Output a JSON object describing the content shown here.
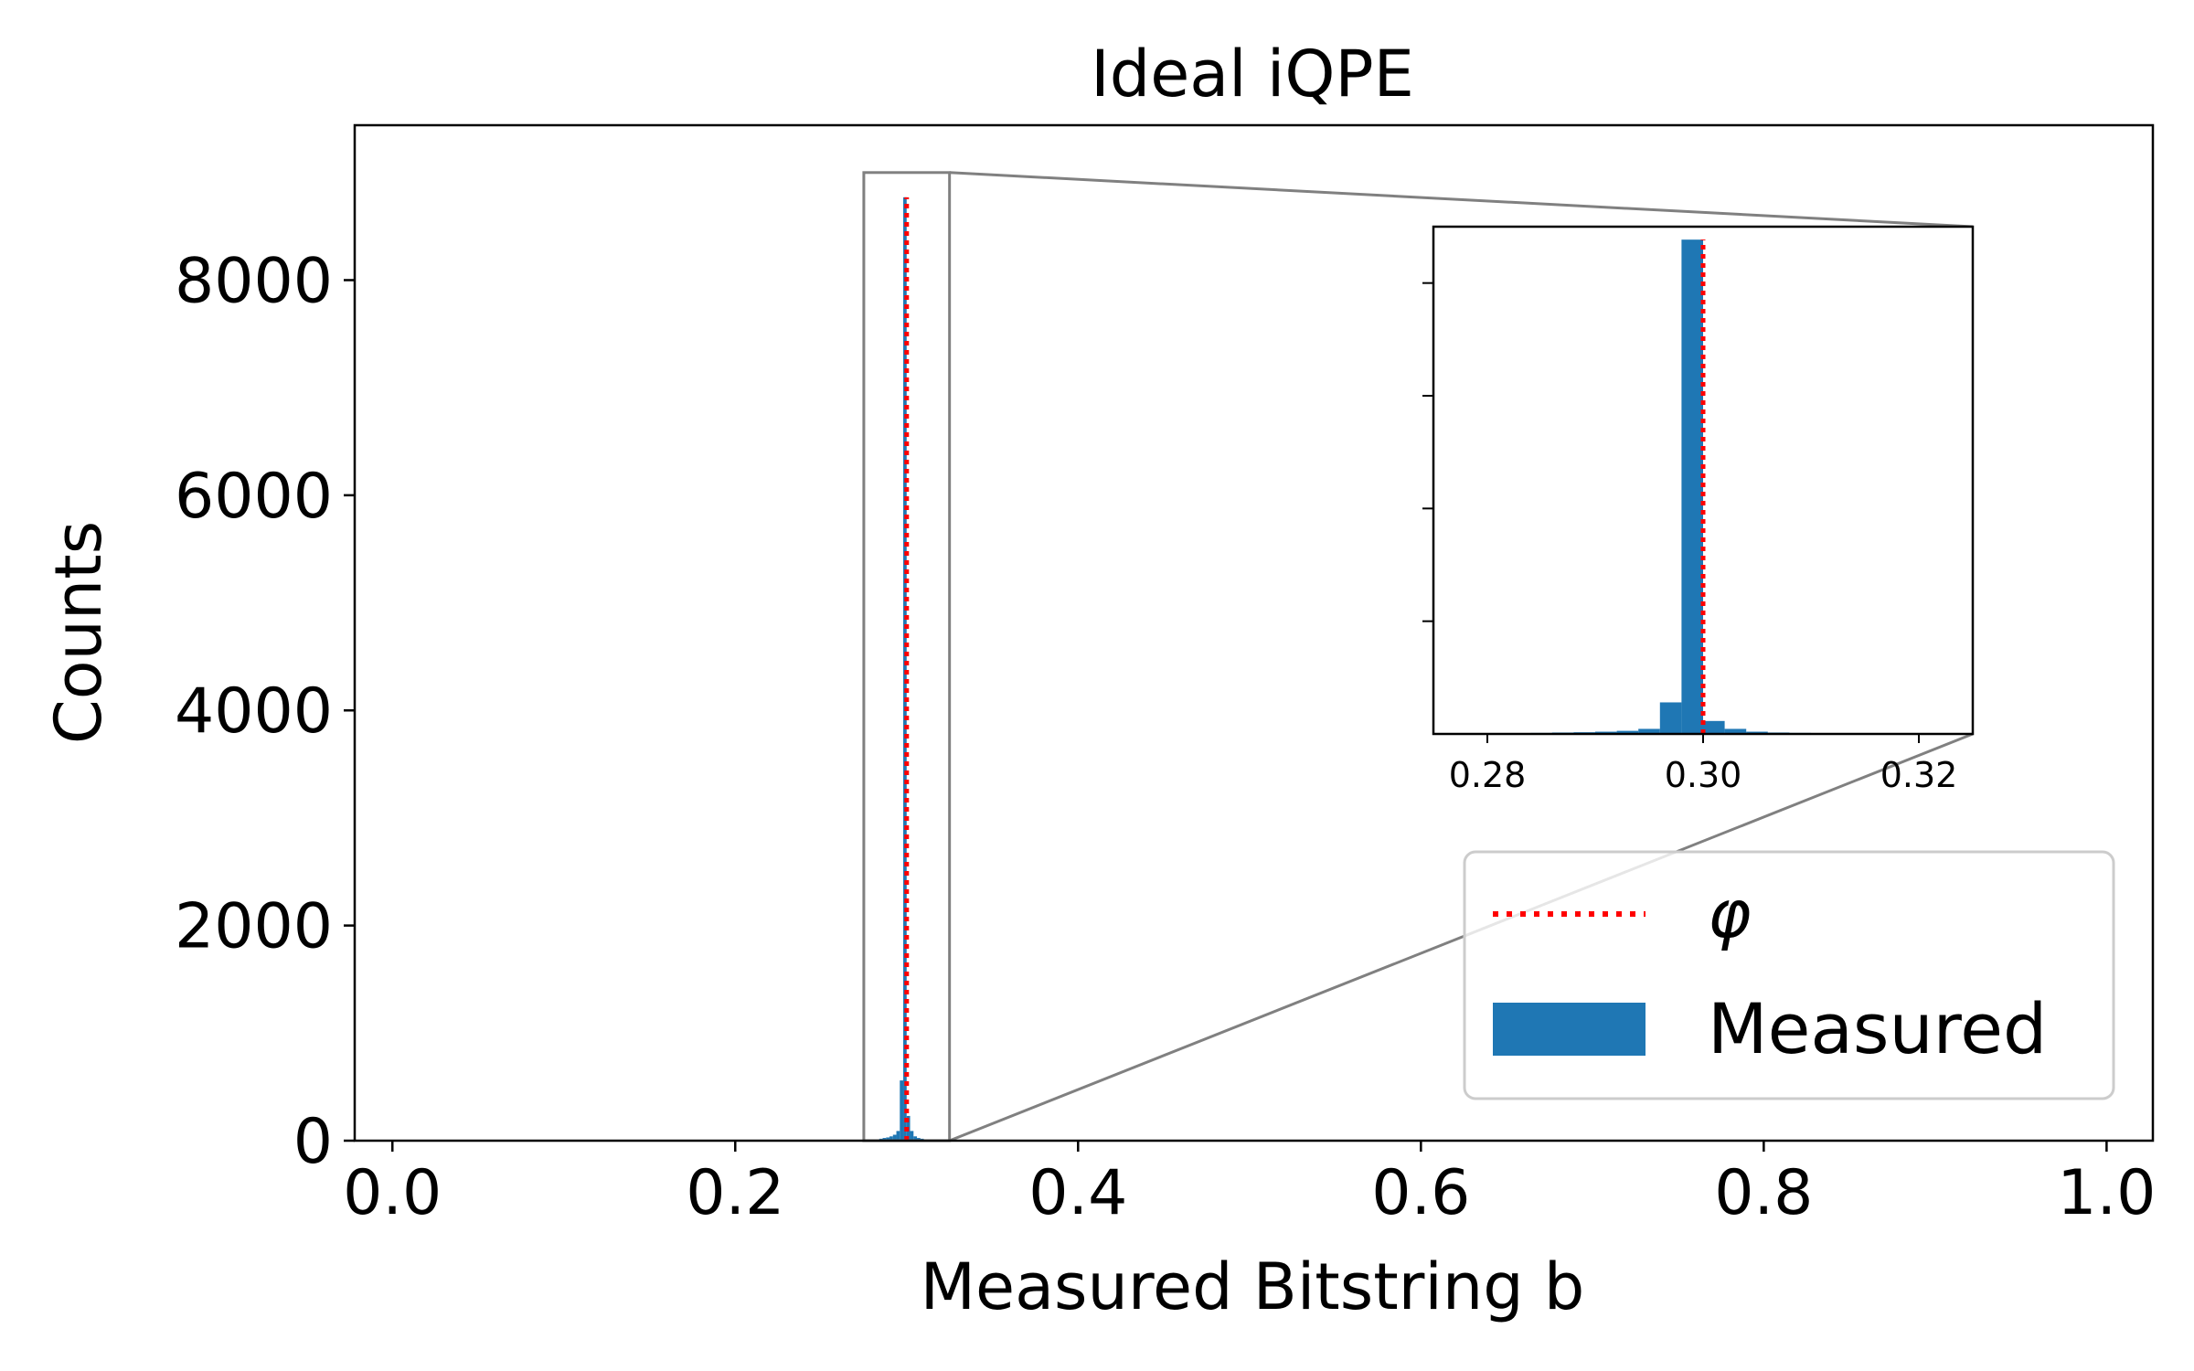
{
  "chart_data": {
    "type": "bar",
    "title": "Ideal iQPE",
    "xlabel": "Measured Bitstring b",
    "ylabel": "Counts",
    "xlim": [
      -0.022,
      1.027
    ],
    "ylim": [
      0,
      9440
    ],
    "x_ticks": [
      0.0,
      0.2,
      0.4,
      0.6,
      0.8,
      1.0
    ],
    "x_tick_labels": [
      "0.0",
      "0.2",
      "0.4",
      "0.6",
      "0.8",
      "1.0"
    ],
    "y_ticks": [
      0,
      2000,
      4000,
      6000,
      8000
    ],
    "y_tick_labels": [
      "0",
      "2000",
      "4000",
      "6000",
      "8000"
    ],
    "grid": false,
    "phi": 0.3,
    "bin_width": 0.002,
    "series": [
      {
        "name": "Measured",
        "color": "#1f77b4",
        "x": [
          0.279,
          0.283,
          0.285,
          0.287,
          0.289,
          0.291,
          0.293,
          0.295,
          0.297,
          0.299,
          0.301,
          0.303,
          0.305,
          0.307,
          0.309,
          0.311,
          0.313,
          0.317
        ],
        "values": [
          8,
          12,
          18,
          25,
          30,
          40,
          55,
          90,
          560,
          8770,
          230,
          90,
          40,
          25,
          18,
          12,
          8,
          5
        ]
      }
    ],
    "reference_line": {
      "name": "φ",
      "x": 0.3,
      "color": "#ff0000",
      "style": "dotted"
    },
    "zoom_region": {
      "xlim": [
        0.275,
        0.325
      ],
      "ylim": [
        0,
        9000
      ]
    },
    "inset": {
      "xlim": [
        0.275,
        0.325
      ],
      "ylim": [
        0,
        9000
      ],
      "x_ticks": [
        0.28,
        0.3,
        0.32
      ],
      "x_tick_labels": [
        "0.28",
        "0.30",
        "0.32"
      ],
      "y_ticks": [
        2000,
        4000,
        6000,
        8000
      ]
    },
    "legend": {
      "placement": "lower-right",
      "entries": [
        {
          "label": "φ",
          "kind": "line",
          "color": "#ff0000"
        },
        {
          "label": "Measured",
          "kind": "patch",
          "color": "#1f77b4"
        }
      ]
    }
  }
}
